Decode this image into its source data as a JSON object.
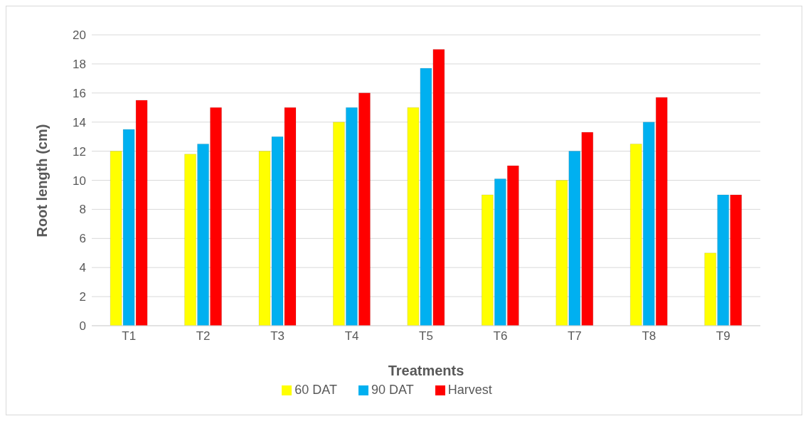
{
  "chart_data": {
    "type": "bar",
    "xlabel": "Treatments",
    "ylabel": "Root length (cm)",
    "categories": [
      "T1",
      "T2",
      "T3",
      "T4",
      "T5",
      "T6",
      "T7",
      "T8",
      "T9"
    ],
    "series": [
      {
        "name": "60 DAT",
        "color": "#ffff00",
        "values": [
          12,
          11.8,
          12,
          14,
          15,
          9,
          10,
          12.5,
          5
        ]
      },
      {
        "name": "90 DAT",
        "color": "#00b0f0",
        "values": [
          13.5,
          12.5,
          13,
          15,
          17.7,
          10.1,
          12,
          14,
          9
        ]
      },
      {
        "name": "Harvest",
        "color": "#ff0000",
        "values": [
          15.5,
          15,
          15,
          16,
          19,
          11,
          13.3,
          15.7,
          9
        ]
      }
    ],
    "ylim": [
      0,
      20
    ],
    "yticks": [
      0,
      2,
      4,
      6,
      8,
      10,
      12,
      14,
      16,
      18,
      20
    ],
    "grid": "y",
    "legend": "bottom"
  }
}
